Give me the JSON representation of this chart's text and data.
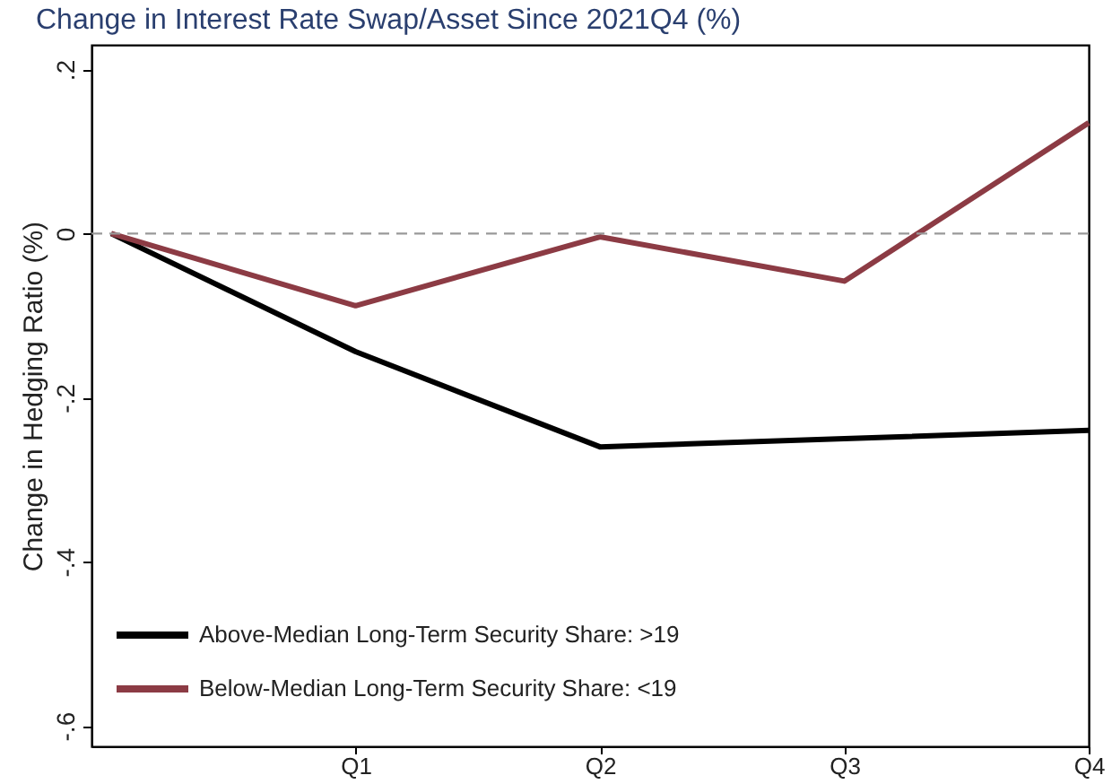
{
  "chart_data": {
    "type": "line",
    "title": "Change in Interest Rate Swap/Asset Since 2021Q4 (%)",
    "ylabel": "Change in Hedging Ratio (%)",
    "categories": [
      null,
      "Q1",
      "Q2",
      "Q3",
      "Q4"
    ],
    "series": [
      {
        "name": "Above-Median Long-Term Security Share: >19",
        "color": "#000000",
        "values": [
          0,
          -0.144,
          -0.26,
          -0.25,
          -0.24
        ]
      },
      {
        "name": "Below-Median Long-Term Security Share: <19",
        "color": "#8c3b44",
        "values": [
          0,
          -0.088,
          -0.004,
          -0.058,
          0.135
        ]
      }
    ],
    "ylim": [
      -0.625,
      0.23
    ],
    "yticks": [
      {
        "value": -0.6,
        "label": "-.6"
      },
      {
        "value": -0.4,
        "label": "-.4"
      },
      {
        "value": -0.2,
        "label": "-.2"
      },
      0,
      {
        "value": 0.2,
        "label": ".2"
      }
    ],
    "ref_lines": [
      {
        "axis": "y",
        "value": 0,
        "color": "#999999",
        "line_style": "dashed"
      }
    ],
    "grid": false,
    "legend": "bottom left",
    "marker": "none",
    "line_style": "solid"
  }
}
